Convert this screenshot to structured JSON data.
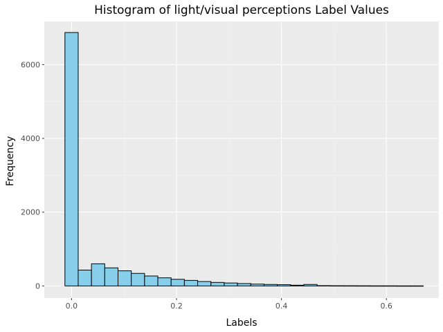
{
  "chart_data": {
    "type": "bar",
    "title": "Histogram of light/visual perceptions Label Values",
    "xlabel": "Labels",
    "ylabel": "Frequency",
    "xlim": [
      -0.052,
      0.7
    ],
    "ylim": [
      -330,
      7170
    ],
    "x_ticks": [
      0.0,
      0.2,
      0.4,
      0.6
    ],
    "x_tick_labels": [
      "0.0",
      "0.2",
      "0.4",
      "0.6"
    ],
    "y_ticks": [
      0,
      2000,
      4000,
      6000
    ],
    "y_tick_labels": [
      "0",
      "2000",
      "4000",
      "6000"
    ],
    "bin_width": 0.0253,
    "bin_starts": [
      -0.0127,
      0.0126,
      0.0379,
      0.0632,
      0.0885,
      0.1138,
      0.1391,
      0.1644,
      0.1897,
      0.215,
      0.2403,
      0.2656,
      0.2909,
      0.3162,
      0.3415,
      0.3668,
      0.3921,
      0.4174,
      0.4427,
      0.468,
      0.4933,
      0.5186,
      0.5439,
      0.5692,
      0.5945,
      0.6198,
      0.6451
    ],
    "values": [
      6870,
      430,
      600,
      490,
      410,
      340,
      270,
      220,
      180,
      150,
      120,
      95,
      80,
      65,
      50,
      40,
      35,
      20,
      40,
      8,
      6,
      5,
      4,
      3,
      3,
      2,
      2
    ],
    "grid": true,
    "colors": {
      "bar_fill": "#87ceeb",
      "bar_stroke": "#000000",
      "panel_bg": "#ebebeb",
      "grid_major": "#ffffff",
      "grid_minor": "#f5f5f5"
    }
  }
}
